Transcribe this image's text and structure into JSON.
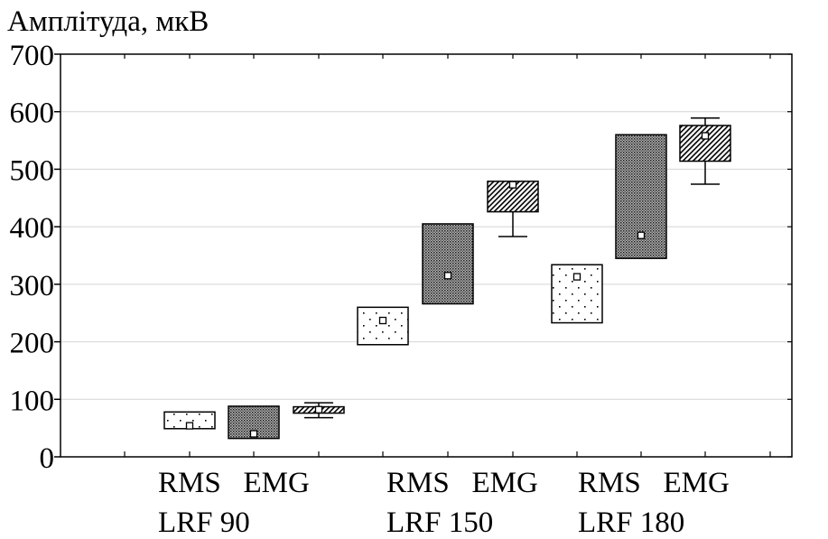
{
  "chart_data": {
    "type": "boxplot",
    "ylabel": "Амплітуда, мкВ",
    "ylim": [
      0,
      700
    ],
    "yticks": [
      0,
      100,
      200,
      300,
      400,
      500,
      600,
      700
    ],
    "grid": true,
    "groups": [
      {
        "line1": "RMS   EMG",
        "line2": "LRF 90"
      },
      {
        "line1": "RMS   EMG",
        "line2": "LRF 150"
      },
      {
        "line1": "RMS   EMG",
        "line2": "LRF 180"
      }
    ],
    "boxes": [
      {
        "group": 0,
        "pattern": "dots",
        "q1": 49,
        "q3": 78,
        "mean": 54,
        "whisker_low": null,
        "whisker_high": null
      },
      {
        "group": 0,
        "pattern": "dense",
        "q1": 32,
        "q3": 88,
        "mean": 40,
        "whisker_low": null,
        "whisker_high": null
      },
      {
        "group": 0,
        "pattern": "hatch",
        "q1": 76,
        "q3": 87,
        "mean": 82,
        "whisker_low": 68,
        "whisker_high": 94
      },
      {
        "group": 1,
        "pattern": "dots",
        "q1": 195,
        "q3": 260,
        "mean": 237,
        "whisker_low": null,
        "whisker_high": null
      },
      {
        "group": 1,
        "pattern": "dense",
        "q1": 266,
        "q3": 405,
        "mean": 315,
        "whisker_low": null,
        "whisker_high": null
      },
      {
        "group": 1,
        "pattern": "hatch",
        "q1": 426,
        "q3": 479,
        "mean": 473,
        "whisker_low": 383,
        "whisker_high": null
      },
      {
        "group": 2,
        "pattern": "dots",
        "q1": 233,
        "q3": 334,
        "mean": 313,
        "whisker_low": null,
        "whisker_high": null
      },
      {
        "group": 2,
        "pattern": "dense",
        "q1": 345,
        "q3": 560,
        "mean": 385,
        "whisker_low": null,
        "whisker_high": null
      },
      {
        "group": 2,
        "pattern": "hatch",
        "q1": 514,
        "q3": 576,
        "mean": 558,
        "whisker_low": 474,
        "whisker_high": 589
      }
    ]
  }
}
